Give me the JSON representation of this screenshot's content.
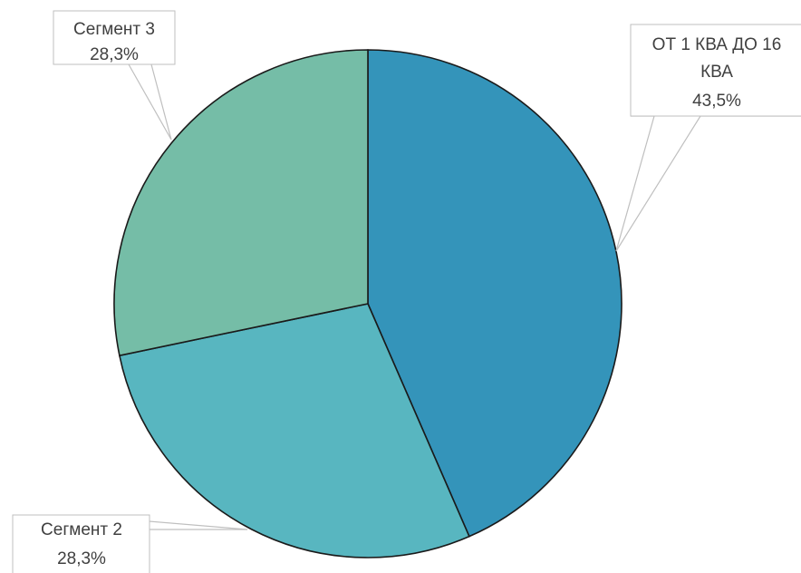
{
  "chart_data": {
    "type": "pie",
    "title": "",
    "slices": [
      {
        "label": "ОТ 1 КВА ДО 16 КВА",
        "label_lines": [
          "ОТ 1 КВА ДО 16",
          "КВА"
        ],
        "value": 43.5,
        "value_text": "43,5%",
        "color": "#3494BA"
      },
      {
        "label": "Сегмент 2",
        "label_lines": [
          "Сегмент 2"
        ],
        "value": 28.3,
        "value_text": "28,3%",
        "color": "#58B6C0"
      },
      {
        "label": "Сегмент 3",
        "label_lines": [
          "Сегмент 3"
        ],
        "value": 28.3,
        "value_text": "28,3%",
        "color": "#75BDA7"
      }
    ]
  }
}
